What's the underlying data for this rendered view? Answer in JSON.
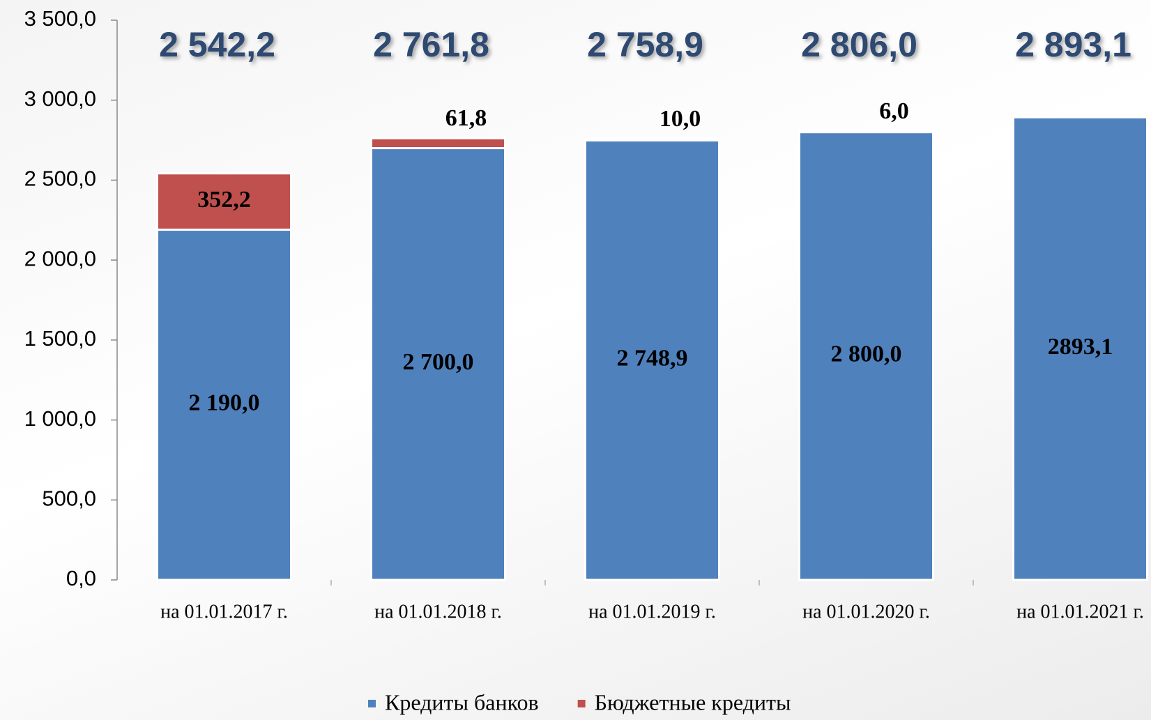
{
  "chart_data": {
    "type": "stacked_bar",
    "categories": [
      "на 01.01.2017 г.",
      "на 01.01.2018 г.",
      "на 01.01.2019 г.",
      "на 01.01.2020 г.",
      "на 01.01.2021 г."
    ],
    "series": [
      {
        "name": "Кредиты банков",
        "color": "#4f81bd",
        "values": [
          2190.0,
          2700.0,
          2748.9,
          2800.0,
          2893.1
        ],
        "value_labels": [
          "2 190,0",
          "2 700,0",
          "2 748,9",
          "2 800,0",
          "2893,1"
        ]
      },
      {
        "name": "Бюджетные кредиты",
        "color": "#c0504d",
        "values": [
          352.2,
          61.8,
          10.0,
          6.0,
          null
        ],
        "value_labels": [
          "352,2",
          "61,8",
          "10,0",
          "6,0",
          null
        ]
      }
    ],
    "totals": [
      "2 542,2",
      "2 761,8",
      "2 758,9",
      "2 806,0",
      "2 893,1"
    ],
    "ylim": [
      0,
      3500
    ],
    "yticks": [
      {
        "value": 0,
        "label": "0,0"
      },
      {
        "value": 500,
        "label": "500,0"
      },
      {
        "value": 1000,
        "label": "1 000,0"
      },
      {
        "value": 1500,
        "label": "1 500,0"
      },
      {
        "value": 2000,
        "label": "2 000,0"
      },
      {
        "value": 2500,
        "label": "2 500,0"
      },
      {
        "value": 3000,
        "label": "3 000,0"
      },
      {
        "value": 3500,
        "label": "3 500,0"
      }
    ],
    "legend": "bottom"
  }
}
